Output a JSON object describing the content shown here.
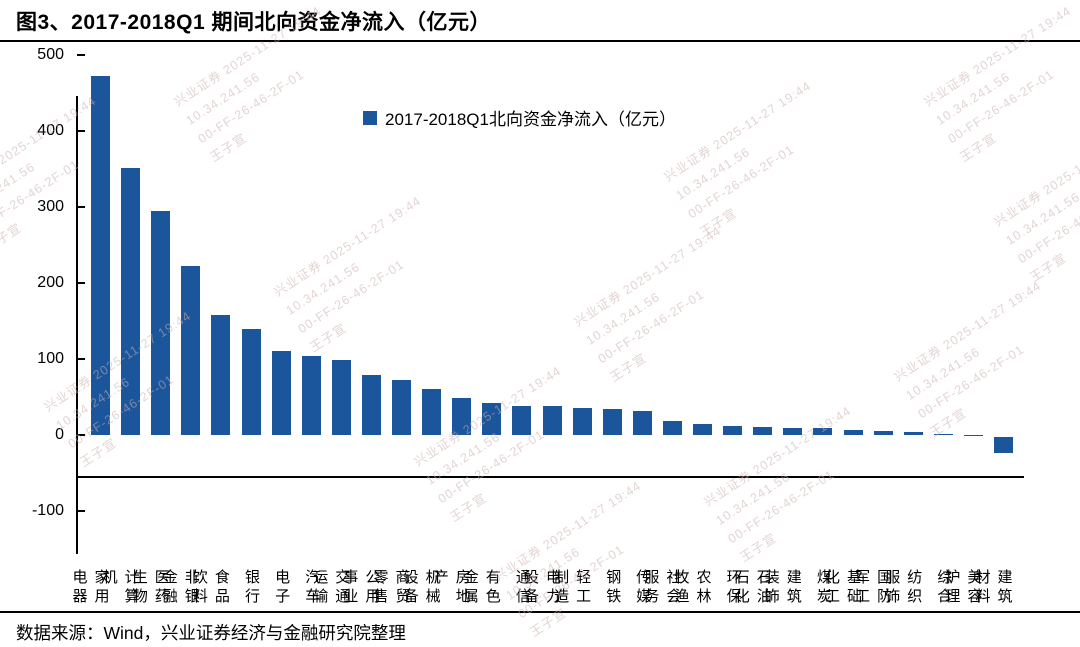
{
  "title": "图3、2017-2018Q1 期间北向资金净流入（亿元）",
  "source": "数据来源：Wind，兴业证券经济与金融研究院整理",
  "watermark": {
    "lines": [
      "兴业证券  2025-11-27  19:44",
      "10.34.241.56",
      "00-FF-26-46-2F-01",
      "王子宣"
    ]
  },
  "chart_data": {
    "type": "bar",
    "title": "图3、2017-2018Q1 期间北向资金净流入（亿元）",
    "legend": "2017-2018Q1北向资金净流入（亿元）",
    "legend_position": "top-center",
    "bar_color": "#1B559B",
    "xlabel": "",
    "ylabel": "",
    "ylim": [
      -100,
      500
    ],
    "yticks": [
      500,
      400,
      300,
      200,
      100,
      0,
      -100
    ],
    "grid": false,
    "categories": [
      "家用电器",
      "计算机",
      "医药生物",
      "非银金融",
      "食品饮料",
      "银行",
      "电子",
      "汽车",
      "交通运输",
      "公用事业",
      "商贸零售",
      "机械设备",
      "房地产",
      "有色金属",
      "通信",
      "电力设备",
      "轻工制造",
      "钢铁",
      "传媒",
      "社会服务",
      "农林牧渔",
      "环保",
      "石油石化",
      "建筑装饰",
      "煤炭",
      "基础化工",
      "国防军工",
      "纺织服饰",
      "综合",
      "美容护理",
      "建筑材料"
    ],
    "values": [
      472,
      351,
      295,
      223,
      158,
      140,
      111,
      104,
      99,
      79,
      73,
      60,
      49,
      42,
      38,
      38,
      35,
      34,
      32,
      19,
      14,
      12,
      10,
      9,
      9,
      6,
      5,
      4,
      1.5,
      0.5,
      -21
    ]
  }
}
